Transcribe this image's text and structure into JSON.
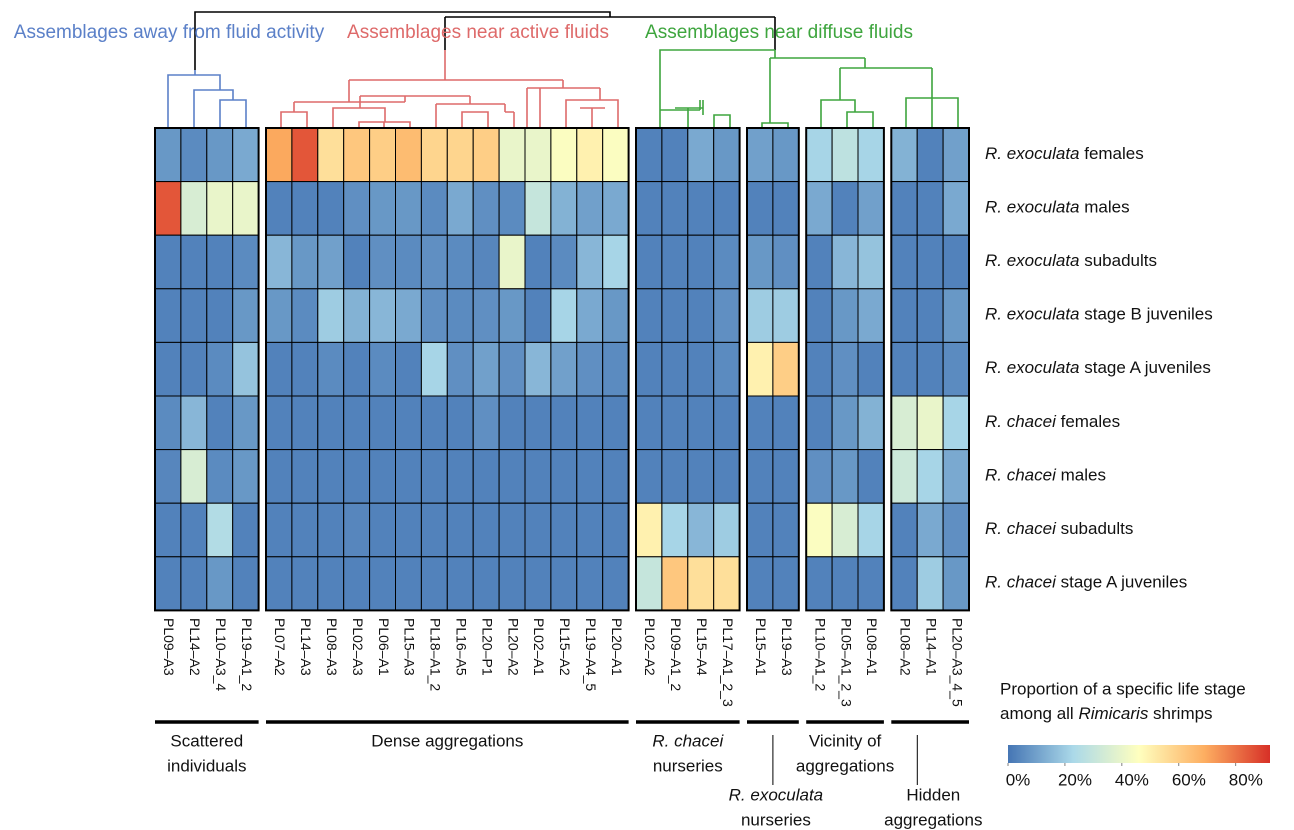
{
  "chart_data": {
    "type": "heatmap",
    "clusters": [
      {
        "label": "Assemblages away from fluid activity",
        "color": "#5b80c8"
      },
      {
        "label": "Assemblages near active fluids",
        "color": "#de6a6a"
      },
      {
        "label": "Assemblages near diffuse fluids",
        "color": "#3ea53e"
      }
    ],
    "rows": [
      {
        "species": "R. exoculata",
        "stage": "females"
      },
      {
        "species": "R. exoculata",
        "stage": "males"
      },
      {
        "species": "R. exoculata",
        "stage": "subadults"
      },
      {
        "species": "R. exoculata",
        "stage": "stage B juveniles"
      },
      {
        "species": "R. exoculata",
        "stage": "stage A juveniles"
      },
      {
        "species": "R. chacei",
        "stage": "females"
      },
      {
        "species": "R. chacei",
        "stage": "males"
      },
      {
        "species": "R. chacei",
        "stage": "subadults"
      },
      {
        "species": "R. chacei",
        "stage": "stage A juveniles"
      }
    ],
    "groups": [
      {
        "label": [
          "Scattered",
          "individuals"
        ],
        "columns": [
          {
            "name": "PL09–A3",
            "values": [
              8,
              85,
              3,
              3,
              3,
              5,
              4,
              3,
              3
            ]
          },
          {
            "name": "PL14–A2",
            "values": [
              5,
              35,
              3,
              3,
              3,
              15,
              35,
              3,
              3
            ]
          },
          {
            "name": "PL10–A3_4",
            "values": [
              8,
              40,
              3,
              3,
              5,
              3,
              5,
              25,
              8
            ]
          },
          {
            "name": "PL19–A1_2",
            "values": [
              12,
              40,
              5,
              8,
              18,
              8,
              8,
              3,
              3
            ]
          }
        ]
      },
      {
        "label": [
          "Dense aggregations"
        ],
        "columns": [
          {
            "name": "PL07–A2",
            "values": [
              70,
              3,
              15,
              8,
              3,
              3,
              3,
              3,
              3
            ]
          },
          {
            "name": "PL14–A3",
            "values": [
              85,
              3,
              8,
              5,
              3,
              3,
              3,
              3,
              3
            ]
          },
          {
            "name": "PL08–A3",
            "values": [
              55,
              3,
              10,
              20,
              5,
              3,
              3,
              3,
              3
            ]
          },
          {
            "name": "PL02–A3",
            "values": [
              62,
              6,
              3,
              14,
              3,
              3,
              3,
              4,
              3
            ]
          },
          {
            "name": "PL06–A1",
            "values": [
              60,
              8,
              6,
              15,
              5,
              3,
              3,
              3,
              3
            ]
          },
          {
            "name": "PL15–A3",
            "values": [
              65,
              8,
              5,
              12,
              3,
              3,
              3,
              3,
              3
            ]
          },
          {
            "name": "PL18–A1_2",
            "values": [
              58,
              5,
              6,
              6,
              22,
              3,
              3,
              3,
              3
            ]
          },
          {
            "name": "PL16–A5",
            "values": [
              58,
              12,
              5,
              5,
              6,
              3,
              3,
              3,
              3
            ]
          },
          {
            "name": "PL20–P1",
            "values": [
              60,
              6,
              4,
              6,
              10,
              6,
              3,
              3,
              3
            ]
          },
          {
            "name": "PL20–A2",
            "values": [
              40,
              5,
              40,
              8,
              6,
              3,
              3,
              3,
              3
            ]
          },
          {
            "name": "PL02–A1",
            "values": [
              40,
              30,
              3,
              3,
              15,
              3,
              3,
              3,
              3
            ]
          },
          {
            "name": "PL15–A2",
            "values": [
              45,
              14,
              5,
              22,
              10,
              3,
              3,
              3,
              3
            ]
          },
          {
            "name": "PL19–A4_5",
            "values": [
              50,
              10,
              15,
              12,
              6,
              3,
              3,
              3,
              3
            ]
          },
          {
            "name": "PL20–A1",
            "values": [
              45,
              12,
              22,
              8,
              5,
              3,
              3,
              3,
              3
            ]
          }
        ]
      },
      {
        "label": [
          "R. chacei",
          "nurseries"
        ],
        "italic_first_line": true,
        "columns": [
          {
            "name": "PL02–A2",
            "values": [
              3,
              3,
              3,
              3,
              3,
              3,
              3,
              50,
              30
            ]
          },
          {
            "name": "PL09–A1_2",
            "values": [
              3,
              3,
              3,
              3,
              3,
              3,
              3,
              22,
              62
            ]
          },
          {
            "name": "PL15–A4",
            "values": [
              12,
              3,
              3,
              3,
              3,
              3,
              3,
              15,
              55
            ]
          },
          {
            "name": "PL17–A1_2_3",
            "values": [
              8,
              3,
              5,
              6,
              5,
              3,
              3,
              20,
              55
            ]
          }
        ]
      },
      {
        "label": [
          "R. exoculata",
          "nurseries"
        ],
        "italic_first_line": true,
        "label_below": true,
        "columns": [
          {
            "name": "PL15–A1",
            "values": [
              10,
              3,
              8,
              20,
              50,
              3,
              3,
              3,
              3
            ]
          },
          {
            "name": "PL19–A3",
            "values": [
              8,
              3,
              6,
              20,
              60,
              3,
              3,
              3,
              3
            ]
          }
        ]
      },
      {
        "label": [
          "Vicinity of",
          "aggregations"
        ],
        "columns": [
          {
            "name": "PL10–A1_2",
            "values": [
              22,
              12,
              3,
              3,
              3,
              3,
              6,
              45,
              3
            ]
          },
          {
            "name": "PL05–A1_2_3",
            "values": [
              28,
              3,
              15,
              8,
              6,
              8,
              8,
              35,
              3
            ]
          },
          {
            "name": "PL08–A1",
            "values": [
              22,
              10,
              18,
              12,
              3,
              14,
              3,
              22,
              3
            ]
          }
        ]
      },
      {
        "label": [
          "Hidden",
          "aggregations"
        ],
        "label_below": true,
        "columns": [
          {
            "name": "PL08–A2",
            "values": [
              14,
              3,
              3,
              3,
              3,
              35,
              32,
              3,
              3
            ]
          },
          {
            "name": "PL14–A1",
            "values": [
              3,
              3,
              3,
              3,
              3,
              40,
              22,
              12,
              20
            ]
          },
          {
            "name": "PL20–A3_4_5",
            "values": [
              10,
              12,
              3,
              8,
              5,
              22,
              12,
              6,
              8
            ]
          }
        ]
      }
    ],
    "colorbar": {
      "title": "Proportion of a specific life stage",
      "title2": [
        "among all",
        "Rimicaris",
        "shrimps"
      ],
      "colormap": [
        "#4575b4",
        "#abd9e9",
        "#ffffbf",
        "#fdae61",
        "#d73027"
      ],
      "clim": [
        0,
        92
      ],
      "ticks": [
        {
          "value": 0,
          "label": "0%"
        },
        {
          "value": 20,
          "label": "20%"
        },
        {
          "value": 40,
          "label": "40%"
        },
        {
          "value": 60,
          "label": "60%"
        },
        {
          "value": 80,
          "label": "80%"
        }
      ]
    }
  }
}
